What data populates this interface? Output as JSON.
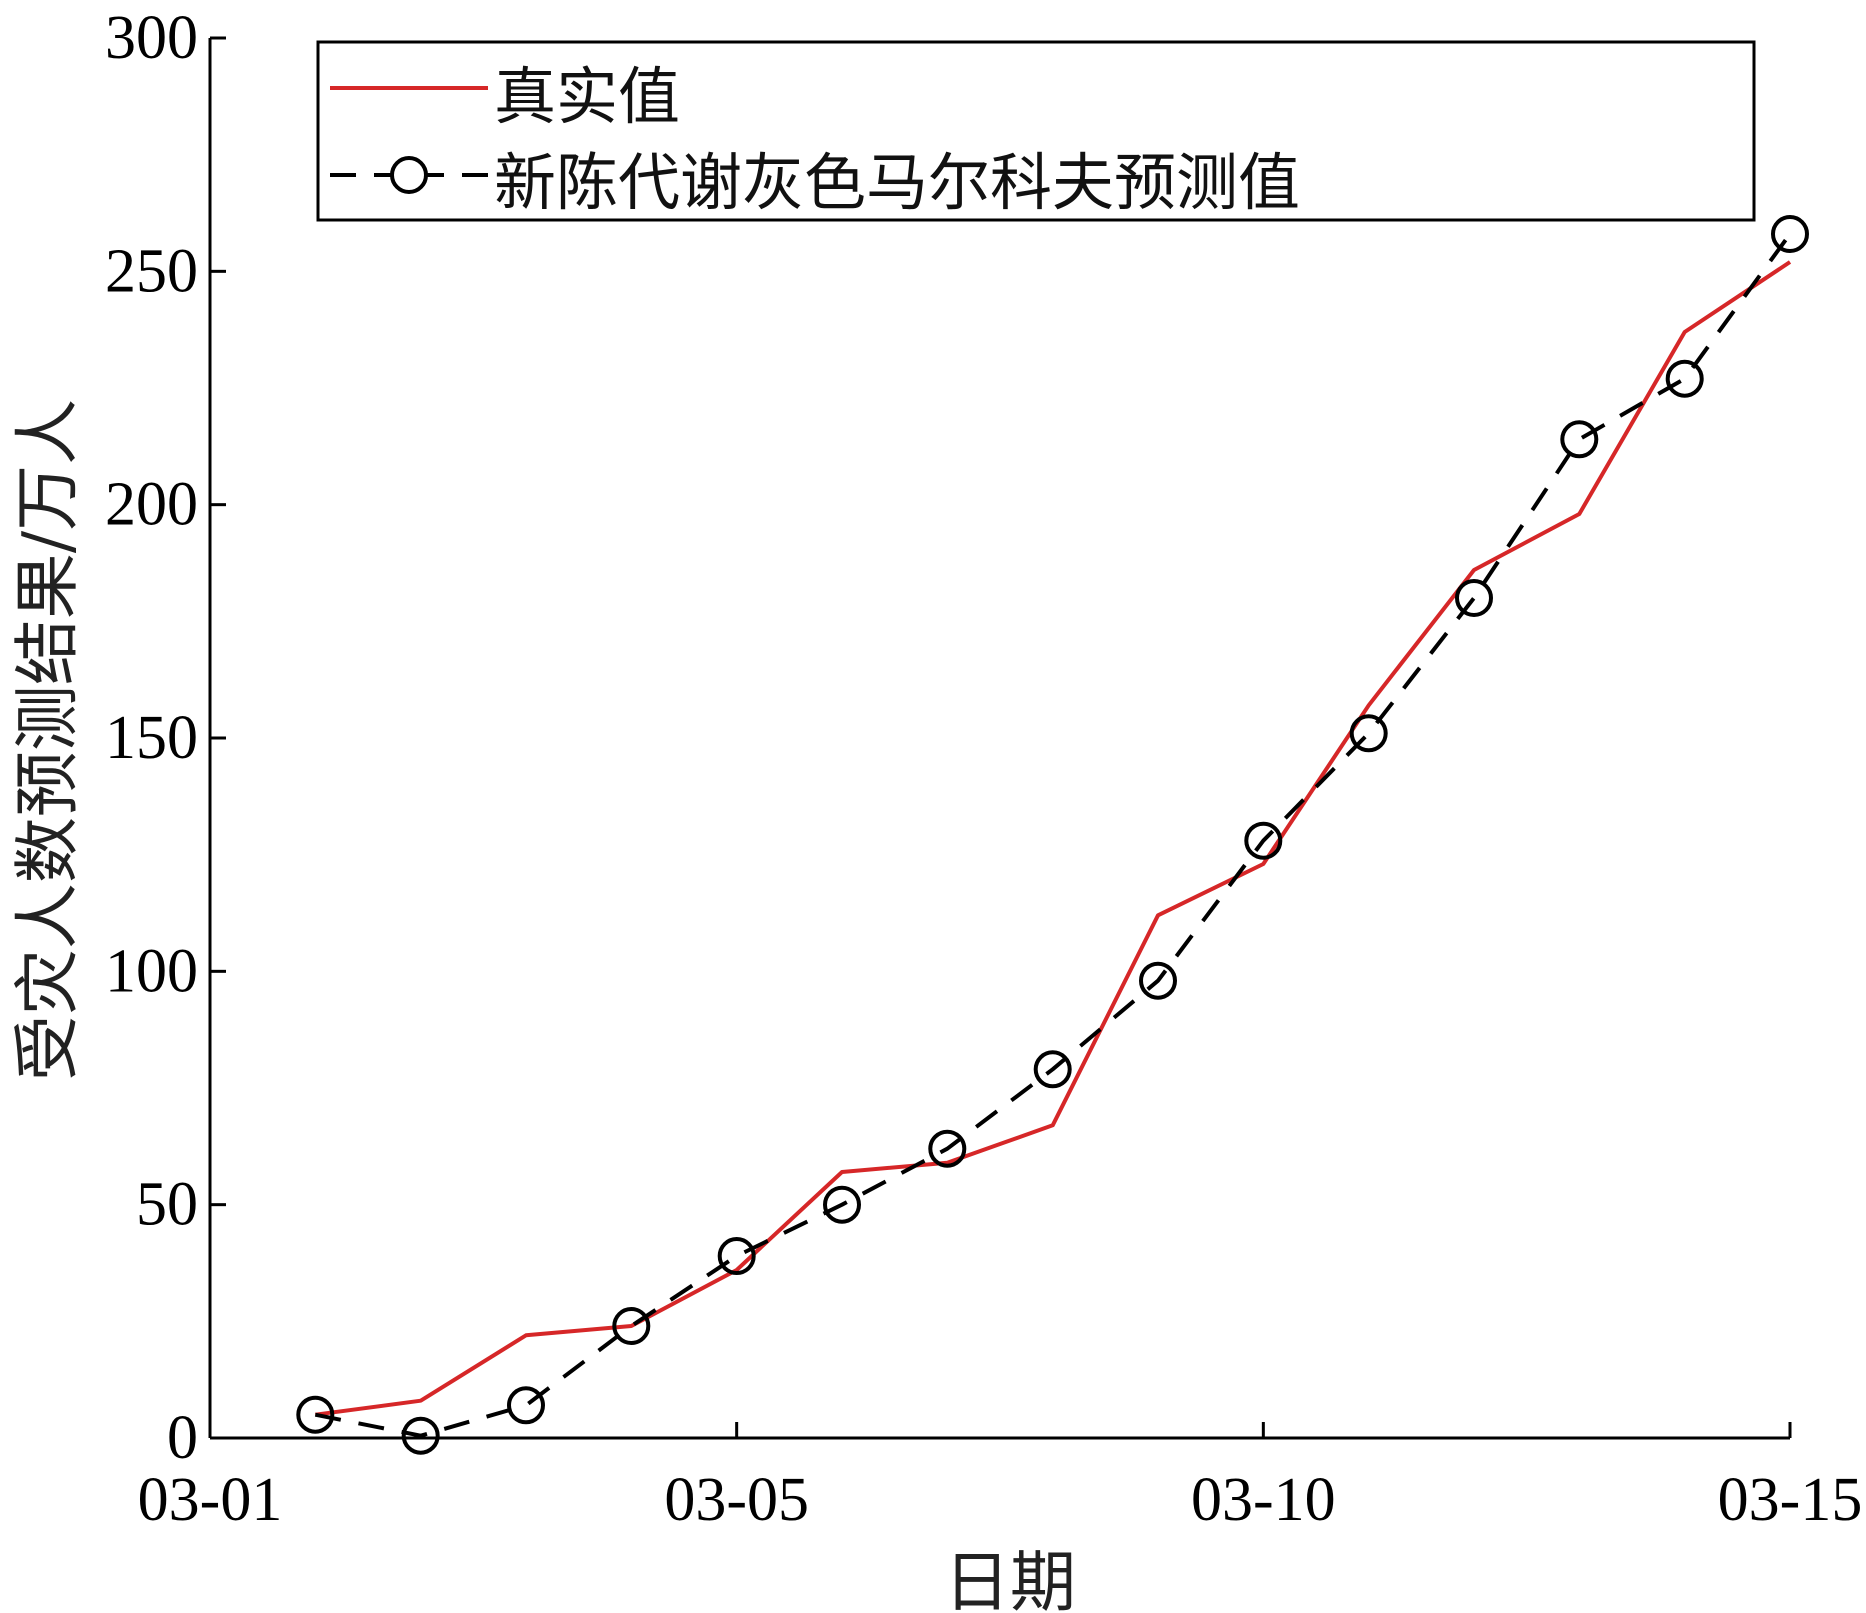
{
  "chart_data": {
    "type": "line",
    "xlabel": "日期",
    "ylabel": "受灾人数预测结果/万人",
    "x_tick_labels": [
      "03-01",
      "03-05",
      "03-10",
      "03-15"
    ],
    "x_tick_positions": [
      0,
      5,
      10,
      15
    ],
    "xlim": [
      0,
      15
    ],
    "ylim": [
      0,
      300
    ],
    "y_ticks": [
      0,
      50,
      100,
      150,
      200,
      250,
      300
    ],
    "grid": false,
    "legend_position": "top",
    "x": [
      1,
      2,
      3,
      4,
      5,
      6,
      7,
      8,
      9,
      10,
      11,
      12,
      13,
      14,
      15
    ],
    "series": [
      {
        "name": "真实值",
        "color": "#d62728",
        "style": "solid",
        "marker": "none",
        "values": [
          5,
          8,
          22,
          24,
          36,
          57,
          59,
          67,
          112,
          123,
          157,
          186,
          198,
          237,
          252
        ]
      },
      {
        "name": "新陈代谢灰色马尔科夫预测值",
        "color": "#000000",
        "style": "dashed",
        "marker": "circle",
        "values": [
          5,
          0.5,
          7,
          24,
          39,
          50,
          62,
          79,
          98,
          128,
          151,
          180,
          214,
          227,
          258
        ]
      }
    ]
  }
}
